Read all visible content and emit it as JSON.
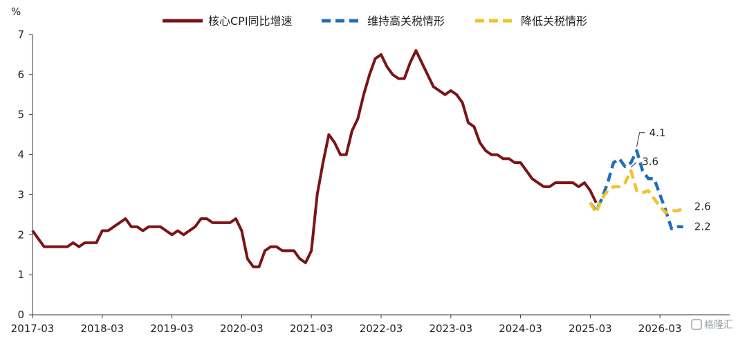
{
  "chart_data": {
    "type": "line",
    "ylabel": "%",
    "ylim": [
      0,
      7
    ],
    "yticks": [
      "0",
      "1",
      "2",
      "3",
      "4",
      "5",
      "6",
      "7"
    ],
    "xticks": [
      "2017-03",
      "2018-03",
      "2019-03",
      "2020-03",
      "2021-03",
      "2022-03",
      "2023-03",
      "2024-03",
      "2025-03",
      "2026-03"
    ],
    "legend_position": "top",
    "grid": false,
    "series": [
      {
        "name": "核心CPI同比增速",
        "color": "#7a1416",
        "dash": "solid",
        "start": "2017-03",
        "values": [
          2.1,
          1.9,
          1.7,
          1.7,
          1.7,
          1.7,
          1.7,
          1.8,
          1.7,
          1.8,
          1.8,
          1.8,
          2.1,
          2.1,
          2.2,
          2.3,
          2.4,
          2.2,
          2.2,
          2.1,
          2.2,
          2.2,
          2.2,
          2.1,
          2.0,
          2.1,
          2.0,
          2.1,
          2.2,
          2.4,
          2.4,
          2.3,
          2.3,
          2.3,
          2.3,
          2.4,
          2.1,
          1.4,
          1.2,
          1.2,
          1.6,
          1.7,
          1.7,
          1.6,
          1.6,
          1.6,
          1.4,
          1.3,
          1.6,
          3.0,
          3.8,
          4.5,
          4.3,
          4.0,
          4.0,
          4.6,
          4.9,
          5.5,
          6.0,
          6.4,
          6.5,
          6.2,
          6.0,
          5.9,
          5.9,
          6.3,
          6.6,
          6.3,
          6.0,
          5.7,
          5.6,
          5.5,
          5.6,
          5.5,
          5.3,
          4.8,
          4.7,
          4.3,
          4.1,
          4.0,
          4.0,
          3.9,
          3.9,
          3.8,
          3.8,
          3.6,
          3.4,
          3.3,
          3.2,
          3.2,
          3.3,
          3.3,
          3.3,
          3.3,
          3.2,
          3.3,
          3.1,
          2.8
        ]
      },
      {
        "name": "维持高关税情形",
        "color": "#1f6fb8",
        "dash": "dashed",
        "start": "2025-03",
        "values": [
          2.8,
          2.6,
          2.9,
          3.3,
          3.8,
          3.9,
          3.7,
          3.8,
          4.1,
          3.6,
          3.4,
          3.4,
          3.0,
          2.6,
          2.15,
          2.2,
          2.2
        ]
      },
      {
        "name": "降低关税情形",
        "color": "#f2c12e",
        "dash": "dashed",
        "start": "2025-03",
        "values": [
          2.8,
          2.55,
          2.9,
          3.1,
          3.2,
          3.2,
          3.3,
          3.6,
          3.1,
          3.05,
          3.1,
          2.9,
          2.7,
          2.55,
          2.6,
          2.6,
          2.65
        ]
      }
    ],
    "annotations": [
      {
        "text": "4.1",
        "series": 1,
        "index": 8
      },
      {
        "text": "3.6",
        "series": 2,
        "index": 7
      },
      {
        "text": "2.6",
        "series": 2,
        "index": 16
      },
      {
        "text": "2.2",
        "series": 1,
        "index": 16
      }
    ]
  },
  "watermark": "格隆汇"
}
